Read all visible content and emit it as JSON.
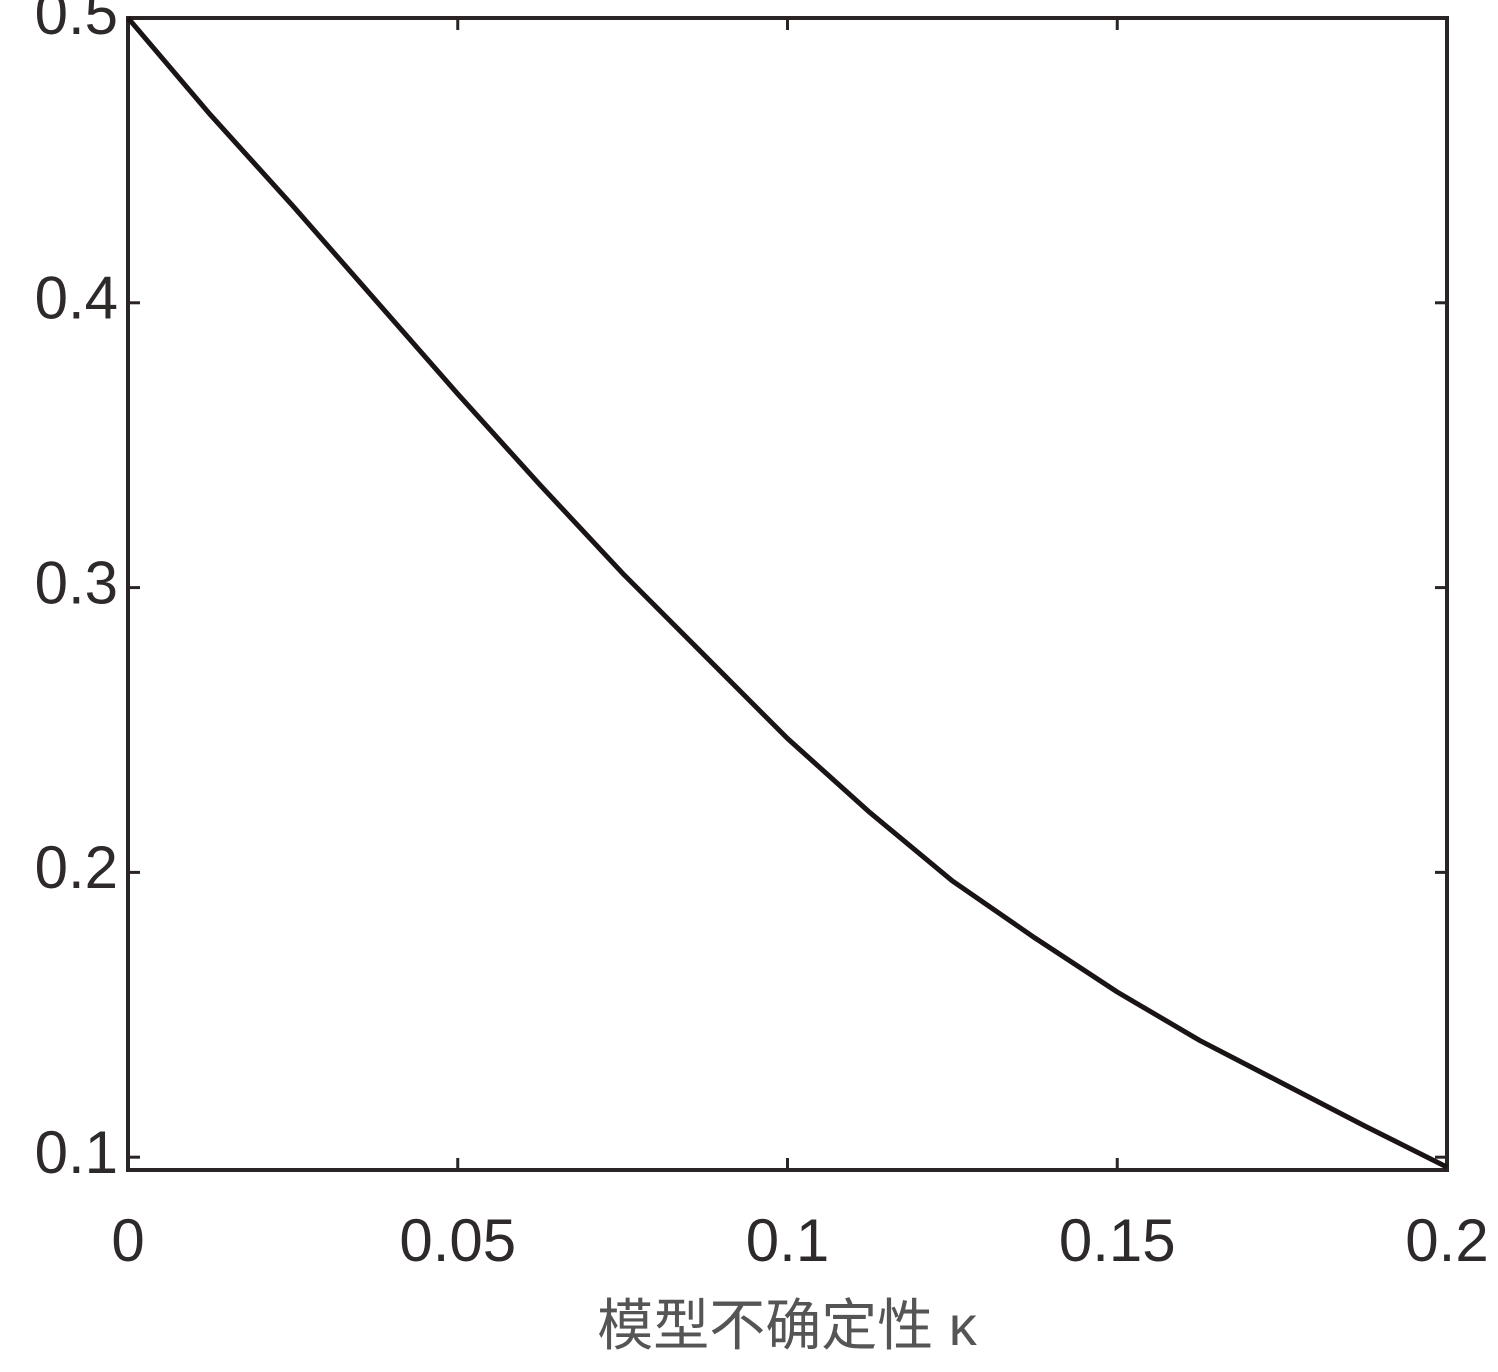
{
  "chart_data": {
    "type": "line",
    "xlabel": "模型不确定性 κ",
    "x": [
      0,
      0.0125,
      0.025,
      0.0375,
      0.05,
      0.0625,
      0.075,
      0.0875,
      0.1,
      0.1125,
      0.125,
      0.1375,
      0.15,
      0.1625,
      0.175,
      0.1875,
      0.2
    ],
    "series": [
      {
        "color": "#1a1414",
        "values": [
          0.5,
          0.466,
          0.434,
          0.401,
          0.368,
          0.336,
          0.305,
          0.276,
          0.247,
          0.221,
          0.197,
          0.177,
          0.158,
          0.141,
          0.126,
          0.111,
          0.0965
        ]
      }
    ],
    "xlim": [
      0,
      0.2
    ],
    "ylim": [
      0.0955,
      0.5
    ],
    "xticks": [
      0,
      0.05,
      0.1,
      0.15,
      0.2
    ],
    "yticks": [
      0.1,
      0.2,
      0.3,
      0.4,
      0.5
    ],
    "grid": false
  }
}
